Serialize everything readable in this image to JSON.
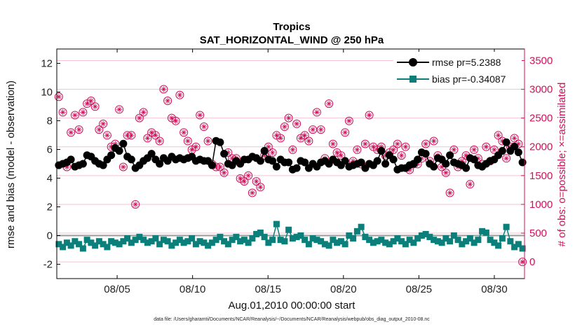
{
  "chart_data": {
    "type": "line",
    "title": "Tropics",
    "subtitle": "SAT_HORIZONTAL_WIND @ 250 hPa",
    "xlabel": "Aug.01,2010 00:00:00 start",
    "ylabel": "rmse and bias (model - observation)",
    "ylabel_right": "# of obs: o=possible; ×=assimilated",
    "footnote": "data file: /Users/gharamti/Documents/NCAR/Reanalysis/~/Documents/NCAR/Reanalysis/webpub/obs_diag_output_2010-08.nc",
    "x_range_days": [
      1.0,
      32.0
    ],
    "x_ticks": [
      {
        "day": 5,
        "label": "08/05"
      },
      {
        "day": 10,
        "label": "08/10"
      },
      {
        "day": 15,
        "label": "08/15"
      },
      {
        "day": 20,
        "label": "08/20"
      },
      {
        "day": 25,
        "label": "08/25"
      },
      {
        "day": 30,
        "label": "08/30"
      }
    ],
    "ylim": [
      -3,
      13
    ],
    "y_ticks": [
      -2,
      0,
      2,
      4,
      6,
      8,
      10,
      12
    ],
    "ylim_right": [
      -290,
      3700
    ],
    "y_ticks_right": [
      0,
      500,
      1000,
      1500,
      2000,
      2500,
      3000,
      3500
    ],
    "colors": {
      "rmse": "#000000",
      "bias": "#0d7f7b",
      "obs": "#d0105a",
      "zero_line": "#9a9a9a",
      "grid": "#f2c4d4"
    },
    "legend": {
      "position": "top-right",
      "entries": [
        {
          "key": "rmse",
          "label": "rmse pr=5.2388"
        },
        {
          "key": "bias",
          "label": "bias pr=-0.34087"
        }
      ]
    },
    "series": [
      {
        "name": "rmse",
        "values": [
          4.9,
          5.0,
          5.1,
          5.3,
          4.8,
          4.9,
          5.0,
          5.6,
          5.5,
          5.2,
          5.0,
          4.9,
          5.3,
          5.6,
          6.1,
          5.9,
          6.4,
          5.5,
          5.3,
          4.7,
          4.9,
          5.2,
          5.4,
          5.7,
          5.3,
          5.0,
          5.4,
          5.2,
          5.5,
          5.3,
          5.4,
          5.3,
          5.4,
          5.5,
          5.2,
          5.3,
          5.2,
          5.2,
          4.9,
          6.6,
          6.5,
          5.7,
          5.0,
          4.9,
          5.2,
          5.0,
          5.3,
          5.3,
          5.5,
          5.4,
          5.2,
          5.9,
          5.3,
          5.2,
          4.8,
          5.3,
          5.1,
          5.1,
          4.6,
          4.7,
          5.2,
          5.1,
          4.7,
          5.0,
          4.8,
          5.1,
          5.2,
          5.0,
          5.3,
          5.1,
          4.9,
          5.2,
          4.8,
          4.9,
          5.0,
          5.1,
          4.7,
          5.0,
          4.9,
          5.2,
          5.9,
          5.0,
          5.6,
          5.3,
          4.6,
          4.7,
          4.7,
          4.9,
          5.0,
          5.3,
          5.8,
          5.7,
          5.0,
          4.8,
          5.4,
          5.3,
          5.0,
          5.6,
          5.1,
          5.0,
          4.9,
          4.7,
          5.4,
          5.3,
          4.9,
          4.8,
          5.0,
          5.2,
          5.3,
          5.6,
          5.9,
          6.5,
          5.9,
          6.2,
          5.8,
          5.1
        ]
      },
      {
        "name": "bias",
        "values": [
          -0.6,
          -0.8,
          -0.5,
          -0.7,
          -0.4,
          -0.6,
          -0.9,
          -0.3,
          -0.5,
          -0.7,
          -0.4,
          -0.6,
          -0.8,
          -0.4,
          -0.5,
          -0.6,
          -0.4,
          -0.2,
          -0.5,
          -0.3,
          -0.1,
          -0.3,
          -0.5,
          -0.4,
          -0.2,
          -0.6,
          -0.3,
          -0.4,
          -0.7,
          -0.5,
          -0.3,
          -0.5,
          -0.4,
          -0.2,
          -0.6,
          -0.4,
          -0.5,
          -0.7,
          -0.5,
          -0.3,
          -0.1,
          -0.4,
          -0.6,
          -0.3,
          -0.1,
          -0.4,
          -0.3,
          -0.5,
          -0.2,
          0.1,
          0.2,
          -0.1,
          -0.5,
          -0.3,
          0.8,
          -0.3,
          -0.4,
          0.4,
          -0.2,
          -0.1,
          0.0,
          -0.3,
          -0.6,
          -0.2,
          -0.3,
          -0.4,
          -0.6,
          -0.7,
          -0.3,
          -0.5,
          -0.4,
          -0.6,
          0.0,
          -0.2,
          0.3,
          0.6,
          -0.1,
          -0.3,
          -0.5,
          -0.4,
          -0.3,
          -0.5,
          -0.6,
          -0.4,
          -0.2,
          -0.4,
          -0.6,
          -0.3,
          -0.5,
          -0.2,
          0.0,
          0.1,
          -0.1,
          -0.3,
          -0.4,
          -0.5,
          -0.2,
          -0.4,
          0.0,
          -0.3,
          -0.6,
          -0.4,
          -0.2,
          -0.5,
          -0.3,
          0.3,
          0.2,
          -0.3,
          -0.5,
          -0.7,
          -0.2,
          0.6,
          -0.4,
          -0.8,
          -0.6,
          -0.9
        ]
      },
      {
        "name": "obs_count",
        "values": [
          2870,
          2600,
          1650,
          2250,
          2550,
          2300,
          2600,
          2750,
          2800,
          2700,
          2300,
          2400,
          2200,
          2000,
          2050,
          2650,
          1650,
          2200,
          2200,
          1000,
          2500,
          2600,
          2150,
          2250,
          2200,
          2100,
          3000,
          2800,
          2500,
          2450,
          2900,
          2250,
          2100,
          1950,
          2000,
          2550,
          2350,
          2100,
          1700,
          1650,
          1650,
          1550,
          1900,
          1800,
          1800,
          1450,
          1400,
          1500,
          1200,
          1400,
          1300,
          1850,
          2000,
          1900,
          2200,
          2150,
          2350,
          2500,
          1950,
          2400,
          2150,
          2200,
          2100,
          2300,
          2600,
          2300,
          1800,
          2750,
          2050,
          1900,
          1850,
          2250,
          2450,
          1750,
          1950,
          1700,
          2050,
          2550,
          2000,
          1950,
          2000,
          1850,
          1900,
          1950,
          2050,
          1850,
          2000,
          1600,
          1700,
          1700,
          1800,
          2050,
          1750,
          2100,
          1850,
          1650,
          1550,
          1200,
          1950,
          1650,
          1750,
          1850,
          1350,
          1950,
          1800,
          1700,
          2000,
          1750,
          1950,
          2200,
          2100,
          1800,
          2000,
          2150,
          2050,
          0
        ]
      }
    ]
  }
}
